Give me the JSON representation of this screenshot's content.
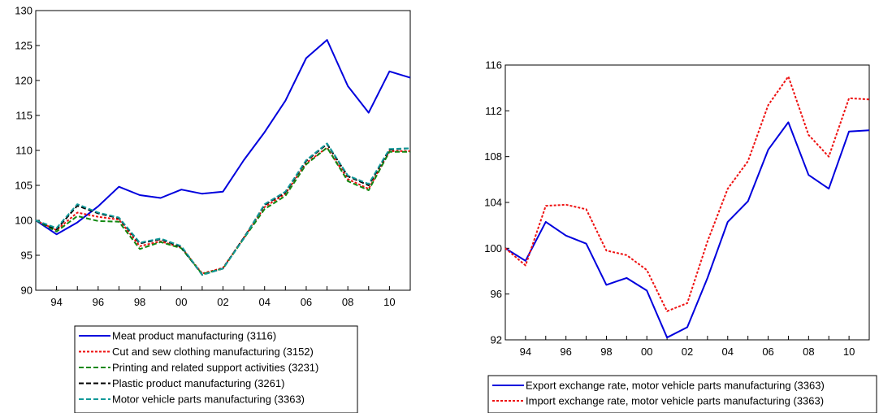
{
  "chart_data": [
    {
      "type": "line",
      "x": [
        1993,
        1994,
        1995,
        1996,
        1997,
        1998,
        1999,
        2000,
        2001,
        2002,
        2003,
        2004,
        2005,
        2006,
        2007,
        2008,
        2009,
        2010,
        2011
      ],
      "xtick_values": [
        1994,
        1996,
        1998,
        2000,
        2002,
        2004,
        2006,
        2008,
        2010
      ],
      "xtick_labels": [
        "94",
        "96",
        "98",
        "00",
        "02",
        "04",
        "06",
        "08",
        "10"
      ],
      "ylim": [
        90,
        130
      ],
      "yticks": [
        90,
        95,
        100,
        105,
        110,
        115,
        120,
        125,
        130
      ],
      "legend_position": "bottom",
      "grid": false,
      "series": [
        {
          "name": "Meat product manufacturing (3116)",
          "color": "#0000dd",
          "dash": "solid",
          "values": [
            100,
            98.0,
            99.7,
            102.0,
            104.8,
            103.6,
            103.2,
            104.4,
            103.8,
            104.1,
            108.6,
            112.6,
            117.1,
            123.2,
            125.8,
            119.2,
            115.4,
            121.3,
            120.4
          ]
        },
        {
          "name": "Cut and sew clothing manufacturing (3152)",
          "color": "#ee1111",
          "dash": "dotted",
          "values": [
            100,
            98.6,
            101.1,
            100.5,
            100.1,
            96.3,
            97.0,
            96.1,
            92.4,
            93.2,
            97.5,
            101.9,
            103.8,
            108.2,
            110.4,
            105.9,
            104.5,
            109.9,
            109.9
          ]
        },
        {
          "name": "Printing and related support activities (3231)",
          "color": "#118811",
          "dash": "dashed",
          "values": [
            100,
            98.4,
            100.6,
            99.9,
            99.8,
            95.9,
            96.9,
            96.0,
            92.3,
            93.1,
            97.4,
            101.6,
            103.5,
            108.0,
            110.4,
            105.6,
            104.3,
            109.8,
            109.8
          ]
        },
        {
          "name": "Plastic product manufacturing (3261)",
          "color": "#000000",
          "dash": "dashed",
          "values": [
            100,
            98.7,
            102.1,
            101.0,
            100.3,
            96.7,
            97.3,
            96.2,
            92.2,
            93.1,
            97.5,
            102.2,
            104.0,
            108.5,
            110.9,
            106.3,
            105.0,
            110.1,
            110.3
          ]
        },
        {
          "name": "Motor vehicle parts manufacturing (3363)",
          "color": "#119999",
          "dash": "dashed",
          "values": [
            100,
            98.9,
            102.3,
            101.1,
            100.4,
            96.8,
            97.4,
            96.3,
            92.2,
            93.1,
            97.4,
            102.3,
            104.1,
            108.6,
            111.0,
            106.4,
            105.2,
            110.2,
            110.3
          ]
        }
      ]
    },
    {
      "type": "line",
      "x": [
        1993,
        1994,
        1995,
        1996,
        1997,
        1998,
        1999,
        2000,
        2001,
        2002,
        2003,
        2004,
        2005,
        2006,
        2007,
        2008,
        2009,
        2010,
        2011
      ],
      "xtick_values": [
        1994,
        1996,
        1998,
        2000,
        2002,
        2004,
        2006,
        2008,
        2010
      ],
      "xtick_labels": [
        "94",
        "96",
        "98",
        "00",
        "02",
        "04",
        "06",
        "08",
        "10"
      ],
      "ylim": [
        92,
        116
      ],
      "yticks": [
        92,
        96,
        100,
        104,
        108,
        112,
        116
      ],
      "legend_position": "bottom",
      "grid": false,
      "series": [
        {
          "name": "Export exchange rate, motor vehicle parts manufacturing (3363)",
          "color": "#0000dd",
          "dash": "solid",
          "values": [
            100,
            98.9,
            102.3,
            101.1,
            100.4,
            96.8,
            97.4,
            96.3,
            92.2,
            93.1,
            97.4,
            102.3,
            104.1,
            108.6,
            111.0,
            106.4,
            105.2,
            110.2,
            110.3
          ]
        },
        {
          "name": "Import exchange rate, motor vehicle parts manufacturing (3363)",
          "color": "#ee1111",
          "dash": "dotted",
          "values": [
            100,
            98.5,
            103.7,
            103.8,
            103.4,
            99.8,
            99.4,
            98.1,
            94.5,
            95.2,
            100.6,
            105.2,
            107.6,
            112.5,
            115.0,
            109.9,
            108.0,
            113.1,
            113.0
          ]
        }
      ]
    }
  ]
}
